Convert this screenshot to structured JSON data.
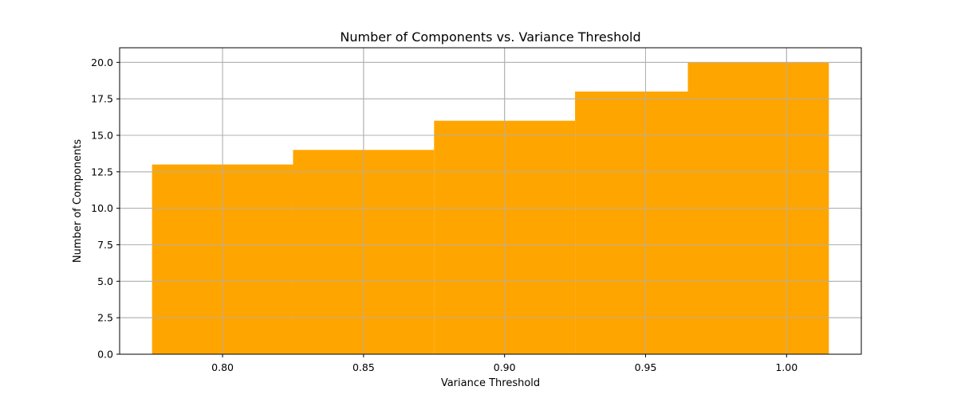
{
  "chart_data": {
    "type": "bar",
    "title": "Number of Components vs. Variance Threshold",
    "xlabel": "Variance Threshold",
    "ylabel": "Number of Components",
    "x": [
      0.8,
      0.85,
      0.9,
      0.95,
      0.99
    ],
    "values": [
      13,
      14,
      16,
      18,
      20
    ],
    "bar_width": 0.05,
    "xlim": [
      0.7635,
      1.0265
    ],
    "ylim": [
      0,
      21
    ],
    "xticks": [
      "0.80",
      "0.85",
      "0.90",
      "0.95",
      "1.00"
    ],
    "yticks": [
      "0.0",
      "2.5",
      "5.0",
      "7.5",
      "10.0",
      "12.5",
      "15.0",
      "17.5",
      "20.0"
    ],
    "grid": true,
    "bar_color": "#ffa500"
  }
}
